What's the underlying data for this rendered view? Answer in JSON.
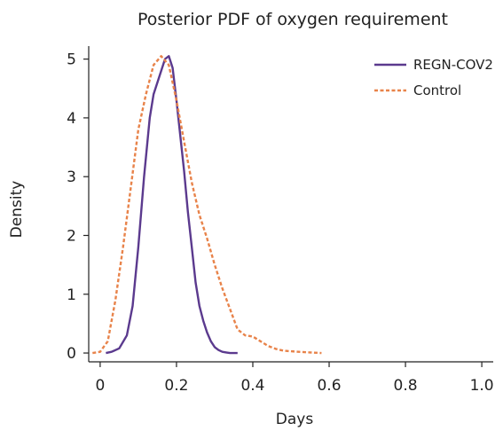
{
  "chart_data": {
    "type": "line",
    "title": "Posterior PDF of oxygen requirement",
    "xlabel": "Days",
    "ylabel": "Density",
    "xlim": [
      -0.03,
      1.03
    ],
    "ylim": [
      -0.15,
      5.1
    ],
    "xticks": [
      0,
      0.2,
      0.4,
      0.6,
      0.8,
      1.0
    ],
    "xtick_labels": [
      "0",
      "0.2",
      "0.4",
      "0.6",
      "0.8",
      "1.0"
    ],
    "yticks": [
      0,
      1,
      2,
      3,
      4,
      5
    ],
    "ytick_labels": [
      "0",
      "1",
      "2",
      "3",
      "4",
      "5"
    ],
    "grid": false,
    "legend_position": "top-right",
    "series": [
      {
        "name": "REGN-COV2",
        "color": "#5b3a8e",
        "style": "solid",
        "x": [
          0.015,
          0.03,
          0.05,
          0.07,
          0.085,
          0.1,
          0.115,
          0.13,
          0.14,
          0.15,
          0.16,
          0.17,
          0.18,
          0.19,
          0.2,
          0.21,
          0.22,
          0.23,
          0.24,
          0.25,
          0.26,
          0.27,
          0.28,
          0.29,
          0.3,
          0.31,
          0.32,
          0.33,
          0.34,
          0.35,
          0.36
        ],
        "y": [
          0.0,
          0.02,
          0.08,
          0.3,
          0.8,
          1.8,
          3.0,
          4.0,
          4.4,
          4.6,
          4.8,
          5.0,
          5.05,
          4.85,
          4.3,
          3.7,
          3.1,
          2.4,
          1.8,
          1.2,
          0.8,
          0.55,
          0.35,
          0.2,
          0.1,
          0.05,
          0.02,
          0.01,
          0.0,
          0.0,
          0.0
        ]
      },
      {
        "name": "Control",
        "color": "#e8834a",
        "style": "dashed",
        "x": [
          -0.02,
          0.0,
          0.02,
          0.04,
          0.06,
          0.08,
          0.1,
          0.12,
          0.14,
          0.16,
          0.18,
          0.2,
          0.22,
          0.24,
          0.26,
          0.28,
          0.3,
          0.32,
          0.34,
          0.36,
          0.38,
          0.4,
          0.42,
          0.44,
          0.46,
          0.48,
          0.5,
          0.52,
          0.55,
          0.58
        ],
        "y": [
          0.0,
          0.02,
          0.2,
          0.9,
          1.8,
          2.8,
          3.8,
          4.4,
          4.9,
          5.05,
          4.9,
          4.3,
          3.6,
          2.9,
          2.35,
          1.95,
          1.5,
          1.1,
          0.75,
          0.4,
          0.3,
          0.28,
          0.2,
          0.12,
          0.07,
          0.04,
          0.03,
          0.02,
          0.01,
          0.0
        ]
      }
    ]
  }
}
